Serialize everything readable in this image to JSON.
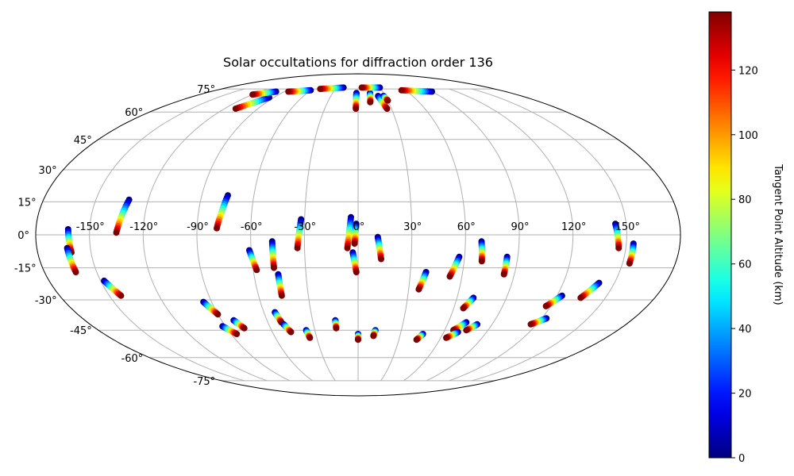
{
  "chart_data": {
    "type": "scatter",
    "projection": "mollweide",
    "title": "Solar occultations for diffraction order 136",
    "xlabel": "",
    "ylabel": "",
    "lon_ticks": [
      -150,
      -120,
      -90,
      -60,
      -30,
      0,
      30,
      60,
      90,
      120,
      150
    ],
    "lon_tick_labels": [
      "-150°",
      "-120°",
      "-90°",
      "-60°",
      "-30°",
      "0°",
      "30°",
      "60°",
      "90°",
      "120°",
      "150°"
    ],
    "lat_ticks": [
      -75,
      -60,
      -45,
      -30,
      -15,
      0,
      15,
      30,
      45,
      60,
      75
    ],
    "lat_tick_labels": [
      "-75°",
      "-60°",
      "-45°",
      "-30°",
      "-15°",
      "0°",
      "15°",
      "30°",
      "45°",
      "60°",
      "75°"
    ],
    "grid": true,
    "colorbar": {
      "label": "Tangent Point Altitude (km)",
      "colormap": "jet",
      "range": [
        0,
        138
      ],
      "ticks": [
        0,
        20,
        40,
        60,
        80,
        100,
        120
      ],
      "tick_labels": [
        "0",
        "20",
        "40",
        "60",
        "80",
        "100",
        "120"
      ]
    },
    "altitude_range_km": [
      0,
      138
    ],
    "occultations": [
      {
        "lon_start": -162,
        "lat_start": 2.5,
        "lon_end": -161,
        "lat_end": -8
      },
      {
        "lon_start": -163,
        "lat_start": -6,
        "lon_end": -162,
        "lat_end": -17
      },
      {
        "lon_start": -148,
        "lat_start": -21,
        "lon_end": -143,
        "lat_end": -28
      },
      {
        "lon_start": -131,
        "lat_start": 16,
        "lon_end": -135,
        "lat_end": 1
      },
      {
        "lon_start": -75,
        "lat_start": 18,
        "lon_end": -79,
        "lat_end": 3
      },
      {
        "lon_start": -95,
        "lat_start": -31,
        "lon_end": -90,
        "lat_end": -37
      },
      {
        "lon_start": -92,
        "lat_start": -43,
        "lon_end": -86,
        "lat_end": -47
      },
      {
        "lon_start": -82,
        "lat_start": -40,
        "lon_end": -78,
        "lat_end": -44
      },
      {
        "lon_start": -61,
        "lat_start": -7,
        "lon_end": -58,
        "lat_end": -16
      },
      {
        "lon_start": -48,
        "lat_start": -3,
        "lon_end": -48,
        "lat_end": -15
      },
      {
        "lon_start": -46,
        "lat_start": -18,
        "lon_end": -46,
        "lat_end": -28
      },
      {
        "lon_start": -53,
        "lat_start": -36,
        "lon_end": -51,
        "lat_end": -41
      },
      {
        "lon_start": -50,
        "lat_start": -42,
        "lon_end": -47,
        "lat_end": -46
      },
      {
        "lon_start": -32,
        "lat_start": 7,
        "lon_end": -34,
        "lat_end": -6
      },
      {
        "lon_start": -36,
        "lat_start": -45,
        "lon_end": -35,
        "lat_end": -49
      },
      {
        "lon_start": -15,
        "lat_start": -40,
        "lon_end": -15,
        "lat_end": -44
      },
      {
        "lon_start": -4,
        "lat_start": 8,
        "lon_end": -6,
        "lat_end": -6
      },
      {
        "lon_start": -1,
        "lat_start": 5,
        "lon_end": -2,
        "lat_end": -4
      },
      {
        "lon_start": -3,
        "lat_start": -8,
        "lon_end": -1,
        "lat_end": -17
      },
      {
        "lon_start": 11,
        "lat_start": -1,
        "lon_end": 13,
        "lat_end": -11
      },
      {
        "lon_start": 0,
        "lat_start": -47,
        "lon_end": 0,
        "lat_end": -50
      },
      {
        "lon_start": 12,
        "lat_start": -45,
        "lon_end": 11,
        "lat_end": -48
      },
      {
        "lon_start": 39,
        "lat_start": -17,
        "lon_end": 36,
        "lat_end": -25
      },
      {
        "lon_start": 57,
        "lat_start": -10,
        "lon_end": 53,
        "lat_end": -19
      },
      {
        "lon_start": 46,
        "lat_start": -47,
        "lon_end": 43,
        "lat_end": -50
      },
      {
        "lon_start": 70,
        "lat_start": -29,
        "lon_end": 66,
        "lat_end": -34
      },
      {
        "lon_start": 69,
        "lat_start": -3,
        "lon_end": 70,
        "lat_end": -12
      },
      {
        "lon_start": 84,
        "lat_start": -10,
        "lon_end": 84,
        "lat_end": -18
      },
      {
        "lon_start": 80,
        "lat_start": -42,
        "lon_end": 75,
        "lat_end": -45
      },
      {
        "lon_start": 72,
        "lat_start": -41,
        "lon_end": 66,
        "lat_end": -45
      },
      {
        "lon_start": 70,
        "lat_start": -46,
        "lon_end": 64,
        "lat_end": -49
      },
      {
        "lon_start": 123,
        "lat_start": -28,
        "lon_end": 117,
        "lat_end": -33
      },
      {
        "lon_start": 123,
        "lat_start": -39,
        "lon_end": 116,
        "lat_end": -42
      },
      {
        "lon_start": 141,
        "lat_start": -22,
        "lon_end": 135,
        "lat_end": -29
      },
      {
        "lon_start": 144,
        "lat_start": 5,
        "lon_end": 146,
        "lat_end": -6
      },
      {
        "lon_start": 154,
        "lat_start": -4,
        "lon_end": 154,
        "lat_end": -13
      },
      {
        "lon_start": -2,
        "lat_start": 72,
        "lon_end": -2,
        "lat_end": 62
      },
      {
        "lon_start": 14,
        "lat_start": 72,
        "lon_end": 12,
        "lat_end": 66
      },
      {
        "lon_start": 22,
        "lat_start": 70,
        "lon_end": 26,
        "lat_end": 62
      },
      {
        "lon_start": 28,
        "lat_start": 70,
        "lon_end": 30,
        "lat_end": 67
      },
      {
        "lon_start": -95,
        "lat_start": 69,
        "lon_end": -110,
        "lat_end": 62
      },
      {
        "lon_start": -100,
        "lat_start": 73,
        "lon_end": -120,
        "lat_end": 71
      },
      {
        "lon_start": -60,
        "lat_start": 74,
        "lon_end": -85,
        "lat_end": 73
      },
      {
        "lon_start": 90,
        "lat_start": 73,
        "lon_end": 55,
        "lat_end": 74
      },
      {
        "lon_start": 30,
        "lat_start": 76,
        "lon_end": 5,
        "lat_end": 76
      },
      {
        "lon_start": -20,
        "lat_start": 76,
        "lon_end": -50,
        "lat_end": 75
      }
    ]
  }
}
